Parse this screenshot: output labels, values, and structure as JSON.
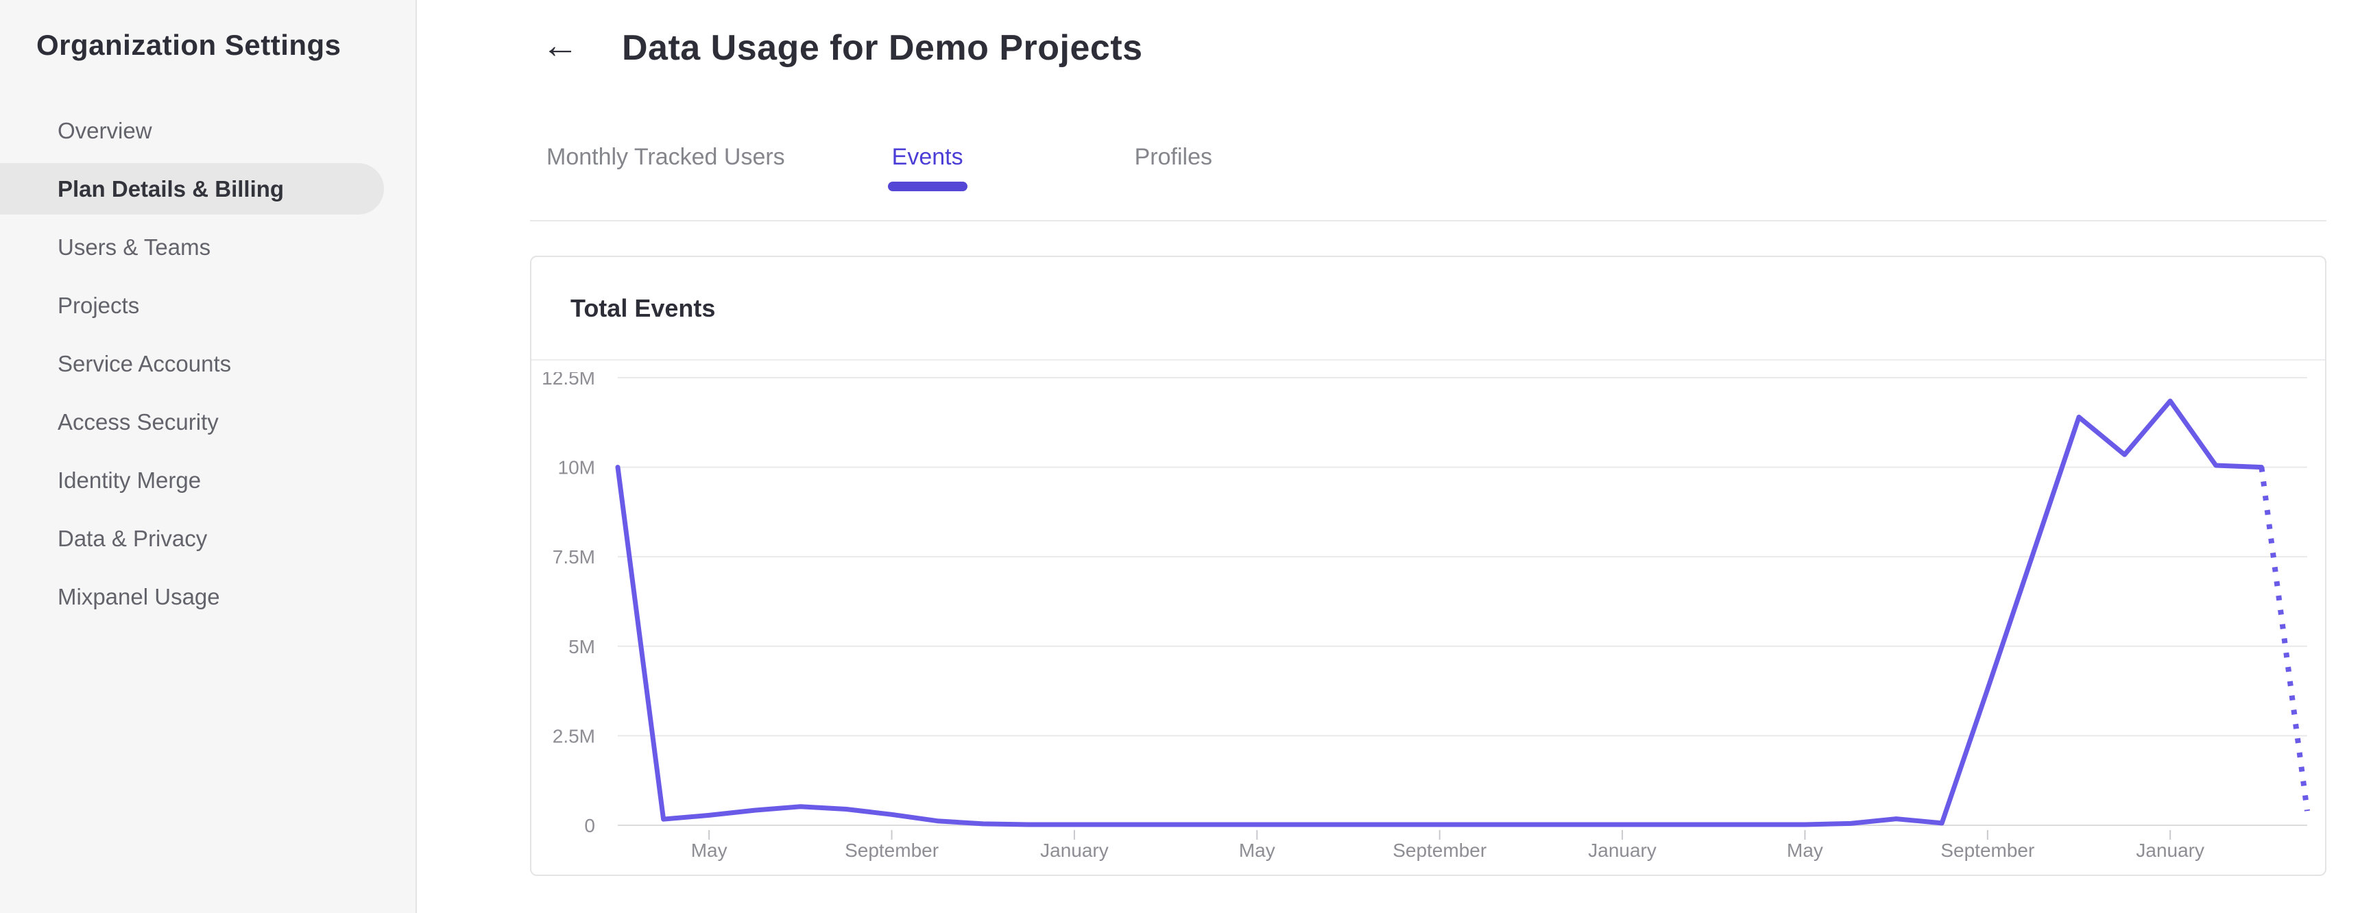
{
  "sidebar": {
    "title": "Organization Settings",
    "items": [
      {
        "id": "overview",
        "label": "Overview",
        "selected": false
      },
      {
        "id": "plan-details-billing",
        "label": "Plan Details & Billing",
        "selected": true
      },
      {
        "id": "users-teams",
        "label": "Users & Teams",
        "selected": false
      },
      {
        "id": "projects",
        "label": "Projects",
        "selected": false
      },
      {
        "id": "service-accounts",
        "label": "Service Accounts",
        "selected": false
      },
      {
        "id": "access-security",
        "label": "Access Security",
        "selected": false
      },
      {
        "id": "identity-merge",
        "label": "Identity Merge",
        "selected": false
      },
      {
        "id": "data-privacy",
        "label": "Data & Privacy",
        "selected": false
      },
      {
        "id": "mixpanel-usage",
        "label": "Mixpanel Usage",
        "selected": false
      }
    ]
  },
  "header": {
    "back_arrow": "←",
    "title": "Data Usage for Demo Projects"
  },
  "tabs": [
    {
      "id": "monthly-tracked-users",
      "label": "Monthly Tracked Users",
      "active": false
    },
    {
      "id": "events",
      "label": "Events",
      "active": true
    },
    {
      "id": "profiles",
      "label": "Profiles",
      "active": false
    }
  ],
  "card": {
    "title": "Total Events"
  },
  "colors": {
    "accent_tab": "#4b3ed6",
    "tab_underline": "#5447d6",
    "line": "#6a5ae8",
    "gridline": "#e9e9eb",
    "baseline": "#dcdcde",
    "tick": "#c9c9cd",
    "axis_text": "#8d8d94",
    "sidebar_bg": "#f6f6f6",
    "selected_pill": "#e7e7e8"
  },
  "chart_data": {
    "type": "line",
    "title": "Total Events",
    "ylabel": "",
    "xlabel": "",
    "ylim": [
      0,
      12.5
    ],
    "unit_suffix": "M",
    "grid": true,
    "legend": false,
    "y_ticks": [
      {
        "label": "12.5M",
        "value": 12.5
      },
      {
        "label": "10M",
        "value": 10
      },
      {
        "label": "7.5M",
        "value": 7.5
      },
      {
        "label": "5M",
        "value": 5
      },
      {
        "label": "2.5M",
        "value": 2.5
      },
      {
        "label": "0",
        "value": 0
      }
    ],
    "x_tick_positions": [
      2,
      6,
      10,
      14,
      18,
      22,
      26,
      30,
      34
    ],
    "x_tick_labels": [
      "May",
      "September",
      "January",
      "May",
      "September",
      "January",
      "May",
      "September",
      "January"
    ],
    "values_millions": [
      10,
      0.17,
      0.28,
      0.42,
      0.52,
      0.45,
      0.3,
      0.12,
      0.04,
      0.02,
      0.02,
      0.02,
      0.02,
      0.02,
      0.02,
      0.02,
      0.02,
      0.02,
      0.02,
      0.02,
      0.02,
      0.02,
      0.02,
      0.02,
      0.02,
      0.02,
      0.02,
      0.05,
      0.18,
      0.06,
      3.8,
      7.6,
      11.4,
      10.35,
      11.85,
      10.05,
      10,
      0.4
    ],
    "solid_until_index": 36,
    "dotted_tail": true,
    "line_color": "#6a5ae8"
  }
}
